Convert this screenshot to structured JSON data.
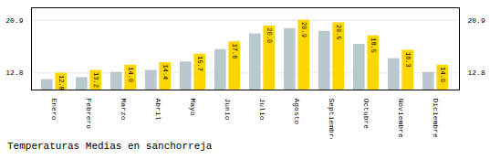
{
  "chart_data": {
    "type": "bar",
    "title": "Temperaturas Medias en sanchorreja",
    "categories": [
      "Enero",
      "Febrero",
      "Marzo",
      "Abril",
      "Mayo",
      "Junio",
      "Julio",
      "Agosto",
      "Septiembre",
      "Octubre",
      "Noviembre",
      "Diciembre"
    ],
    "series": [
      {
        "color": "#B8C8CC",
        "values": [
          11.8,
          12.1,
          12.9,
          13.2,
          14.5,
          16.4,
          18.8,
          19.6,
          19.2,
          17.2,
          15.0,
          12.9
        ]
      },
      {
        "color": "#FFD700",
        "values": [
          12.8,
          13.2,
          14.0,
          14.4,
          15.7,
          17.6,
          20.0,
          20.9,
          20.5,
          18.5,
          16.3,
          14.0
        ],
        "value_labels": [
          "12.8",
          "13.2",
          "14.0",
          "14.4",
          "15.7",
          "17.6",
          "20.0",
          "20.9",
          "20.5",
          "18.5",
          "16.3",
          "14.0"
        ],
        "data_labels": true
      }
    ],
    "ylim": [
      10.2,
      22.8
    ],
    "yticks": [
      12.8,
      20.9
    ],
    "grid": true
  }
}
